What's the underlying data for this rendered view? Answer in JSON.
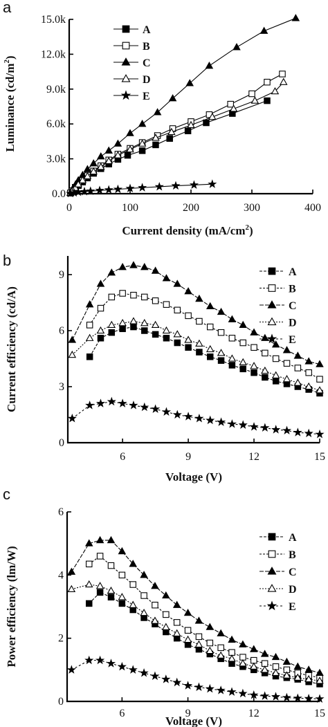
{
  "chart_data": [
    {
      "panel": "a",
      "type": "line",
      "xlabel": "Current density (mA/cm",
      "xlabel_sup": "2",
      "xlabel_end": ")",
      "ylabel": "Luminance (cd/m",
      "ylabel_sup": "2",
      "ylabel_end": ")",
      "xlim": [
        0,
        400
      ],
      "ylim": [
        0,
        15000
      ],
      "xticks": [
        0,
        100,
        200,
        300,
        400
      ],
      "xtick_labels": [
        "0",
        "100",
        "200",
        "300",
        "400"
      ],
      "yticks": [
        0,
        3000,
        6000,
        9000,
        12000,
        15000
      ],
      "ytick_labels": [
        "0.0",
        "3.0k",
        "6.0k",
        "9.0k",
        "12.0k",
        "15.0k"
      ],
      "legend_position": "top-left",
      "series": [
        {
          "name": "A",
          "marker": "square-filled",
          "x": [
            2,
            5,
            10,
            15,
            22,
            30,
            40,
            52,
            65,
            80,
            96,
            120,
            142,
            165,
            195,
            225,
            268,
            325
          ],
          "y": [
            50,
            200,
            450,
            700,
            1000,
            1350,
            1750,
            2150,
            2550,
            2950,
            3300,
            3700,
            4200,
            4750,
            5400,
            6100,
            6900,
            8000
          ]
        },
        {
          "name": "B",
          "marker": "square-open",
          "x": [
            2,
            5,
            10,
            15,
            22,
            30,
            40,
            52,
            65,
            80,
            100,
            120,
            145,
            170,
            200,
            230,
            265,
            300,
            325,
            350
          ],
          "y": [
            60,
            250,
            550,
            850,
            1200,
            1550,
            1950,
            2400,
            2900,
            3400,
            3900,
            4400,
            5000,
            5600,
            6200,
            6800,
            7700,
            8600,
            9600,
            10300
          ]
        },
        {
          "name": "C",
          "marker": "triangle-filled",
          "x": [
            2,
            5,
            10,
            15,
            22,
            30,
            40,
            52,
            65,
            80,
            100,
            120,
            145,
            170,
            198,
            230,
            275,
            320,
            372
          ],
          "y": [
            80,
            350,
            750,
            1150,
            1600,
            2100,
            2600,
            3200,
            3700,
            4300,
            5200,
            6000,
            7000,
            8200,
            9500,
            11000,
            12600,
            14000,
            15100
          ]
        },
        {
          "name": "D",
          "marker": "triangle-open",
          "x": [
            2,
            5,
            10,
            15,
            22,
            30,
            40,
            52,
            65,
            80,
            100,
            120,
            142,
            168,
            200,
            235,
            270,
            305,
            338,
            352
          ],
          "y": [
            60,
            250,
            500,
            800,
            1150,
            1500,
            1900,
            2300,
            2800,
            3300,
            3800,
            4300,
            4800,
            5300,
            5900,
            6600,
            7300,
            8000,
            8800,
            9600
          ]
        },
        {
          "name": "E",
          "marker": "star-filled",
          "x": [
            2,
            8,
            15,
            25,
            35,
            50,
            65,
            80,
            100,
            120,
            148,
            175,
            205,
            235
          ],
          "y": [
            20,
            80,
            130,
            180,
            220,
            280,
            330,
            380,
            450,
            520,
            600,
            680,
            750,
            820
          ]
        }
      ]
    },
    {
      "panel": "b",
      "type": "line",
      "xlabel": "Voltage (V)",
      "ylabel": "Current efficiency (cd/A)",
      "xlim": [
        3.5,
        15
      ],
      "ylim": [
        0,
        10
      ],
      "xticks": [
        6,
        9,
        12,
        15
      ],
      "xtick_labels": [
        "6",
        "9",
        "12",
        "15"
      ],
      "yticks": [
        0,
        3,
        6,
        9
      ],
      "ytick_labels": [
        "0",
        "3",
        "6",
        "9"
      ],
      "legend_position": "top-right",
      "series": [
        {
          "name": "A",
          "marker": "square-filled",
          "x": [
            4.5,
            5.0,
            5.5,
            6.0,
            6.5,
            7.0,
            7.5,
            8.0,
            8.5,
            9.0,
            9.5,
            10.0,
            10.5,
            11.0,
            11.5,
            12.0,
            12.5,
            13.0,
            13.5,
            14.0,
            14.5,
            15.0
          ],
          "y": [
            4.6,
            5.6,
            5.9,
            6.1,
            6.2,
            6.0,
            5.8,
            5.6,
            5.35,
            5.1,
            4.85,
            4.6,
            4.4,
            4.15,
            3.95,
            3.75,
            3.5,
            3.3,
            3.15,
            3.0,
            2.85,
            2.65
          ]
        },
        {
          "name": "B",
          "marker": "square-open",
          "x": [
            4.5,
            5.0,
            5.5,
            6.0,
            6.5,
            7.0,
            7.5,
            8.0,
            8.5,
            9.0,
            9.5,
            10.0,
            10.5,
            11.0,
            11.5,
            12.0,
            12.5,
            13.0,
            13.5,
            14.0,
            14.5,
            15.0
          ],
          "y": [
            6.3,
            7.2,
            7.8,
            8.0,
            7.9,
            7.8,
            7.6,
            7.4,
            7.1,
            6.8,
            6.5,
            6.2,
            5.9,
            5.6,
            5.35,
            5.1,
            4.8,
            4.5,
            4.25,
            4.0,
            3.75,
            3.4
          ]
        },
        {
          "name": "C",
          "marker": "triangle-filled",
          "x": [
            3.7,
            4.5,
            5.0,
            5.5,
            6.0,
            6.5,
            7.0,
            7.5,
            8.0,
            8.5,
            9.0,
            9.5,
            10.0,
            10.5,
            11.0,
            11.5,
            12.0,
            12.5,
            13.0,
            13.5,
            14.0,
            14.5,
            15.0
          ],
          "y": [
            5.5,
            7.4,
            8.5,
            9.1,
            9.4,
            9.5,
            9.4,
            9.2,
            8.8,
            8.5,
            8.1,
            7.7,
            7.3,
            7.0,
            6.6,
            6.3,
            5.9,
            5.6,
            5.25,
            4.95,
            4.65,
            4.35,
            4.2
          ]
        },
        {
          "name": "D",
          "marker": "triangle-open",
          "x": [
            3.7,
            4.5,
            5.0,
            5.5,
            6.0,
            6.5,
            7.0,
            7.5,
            8.0,
            8.5,
            9.0,
            9.5,
            10.0,
            10.5,
            11.0,
            11.5,
            12.0,
            12.5,
            13.0,
            13.5,
            14.0,
            14.5,
            15.0
          ],
          "y": [
            4.7,
            5.6,
            6.0,
            6.3,
            6.4,
            6.5,
            6.4,
            6.3,
            6.0,
            5.8,
            5.5,
            5.3,
            5.0,
            4.8,
            4.5,
            4.3,
            4.1,
            3.85,
            3.6,
            3.4,
            3.2,
            3.0,
            2.8
          ]
        },
        {
          "name": "E",
          "marker": "star-filled",
          "x": [
            3.7,
            4.5,
            5.0,
            5.5,
            6.0,
            6.5,
            7.0,
            7.5,
            8.0,
            8.5,
            9.0,
            9.5,
            10.0,
            10.5,
            11.0,
            11.5,
            12.0,
            12.5,
            13.0,
            13.5,
            14.0,
            14.5,
            15.0
          ],
          "y": [
            1.3,
            2.0,
            2.1,
            2.2,
            2.1,
            2.0,
            1.9,
            1.8,
            1.65,
            1.5,
            1.4,
            1.3,
            1.2,
            1.1,
            1.0,
            0.95,
            0.85,
            0.8,
            0.7,
            0.65,
            0.55,
            0.5,
            0.45
          ]
        }
      ]
    },
    {
      "panel": "c",
      "type": "line",
      "xlabel": "Voltage (V)",
      "ylabel": "Power efficiency (lm/W)",
      "xlim": [
        3.5,
        15
      ],
      "ylim": [
        0,
        6
      ],
      "xticks": [
        6,
        9,
        12,
        15
      ],
      "xtick_labels": [
        "6",
        "9",
        "12",
        "15"
      ],
      "yticks": [
        0,
        2,
        4,
        6
      ],
      "ytick_labels": [
        "0",
        "2",
        "4",
        "6"
      ],
      "legend_position": "right",
      "series": [
        {
          "name": "A",
          "marker": "square-filled",
          "x": [
            4.5,
            5.0,
            5.5,
            6.0,
            6.5,
            7.0,
            7.5,
            8.0,
            8.5,
            9.0,
            9.5,
            10.0,
            10.5,
            11.0,
            11.5,
            12.0,
            12.5,
            13.0,
            13.5,
            14.0,
            14.5,
            15.0
          ],
          "y": [
            3.1,
            3.45,
            3.3,
            3.1,
            2.9,
            2.65,
            2.45,
            2.2,
            2.0,
            1.8,
            1.65,
            1.5,
            1.35,
            1.2,
            1.1,
            1.0,
            0.9,
            0.8,
            0.75,
            0.7,
            0.62,
            0.55
          ]
        },
        {
          "name": "B",
          "marker": "square-open",
          "x": [
            4.5,
            5.0,
            5.5,
            6.0,
            6.5,
            7.0,
            7.5,
            8.0,
            8.5,
            9.0,
            9.5,
            10.0,
            10.5,
            11.0,
            11.5,
            12.0,
            12.5,
            13.0,
            13.5,
            14.0,
            14.5,
            15.0
          ],
          "y": [
            4.35,
            4.6,
            4.3,
            4.0,
            3.7,
            3.35,
            3.05,
            2.75,
            2.5,
            2.25,
            2.05,
            1.85,
            1.7,
            1.55,
            1.4,
            1.3,
            1.2,
            1.1,
            1.0,
            0.9,
            0.82,
            0.75
          ]
        },
        {
          "name": "C",
          "marker": "triangle-filled",
          "x": [
            3.7,
            4.5,
            5.0,
            5.5,
            6.0,
            6.5,
            7.0,
            7.5,
            8.0,
            8.5,
            9.0,
            9.5,
            10.0,
            10.5,
            11.0,
            11.5,
            12.0,
            12.5,
            13.0,
            13.5,
            14.0,
            14.5,
            15.0
          ],
          "y": [
            4.1,
            5.0,
            5.1,
            5.1,
            4.75,
            4.35,
            4.0,
            3.65,
            3.35,
            3.05,
            2.8,
            2.55,
            2.35,
            2.15,
            1.95,
            1.8,
            1.65,
            1.5,
            1.4,
            1.25,
            1.1,
            1.0,
            0.9
          ]
        },
        {
          "name": "D",
          "marker": "triangle-open",
          "x": [
            3.7,
            4.5,
            5.0,
            5.5,
            6.0,
            6.5,
            7.0,
            7.5,
            8.0,
            8.5,
            9.0,
            9.5,
            10.0,
            10.5,
            11.0,
            11.5,
            12.0,
            12.5,
            13.0,
            13.5,
            14.0,
            14.5,
            15.0
          ],
          "y": [
            3.55,
            3.7,
            3.65,
            3.5,
            3.3,
            3.05,
            2.8,
            2.55,
            2.35,
            2.15,
            1.95,
            1.8,
            1.6,
            1.45,
            1.35,
            1.2,
            1.1,
            1.0,
            0.9,
            0.82,
            0.75,
            0.7,
            0.65
          ]
        },
        {
          "name": "E",
          "marker": "star-filled",
          "x": [
            3.7,
            4.5,
            5.0,
            5.5,
            6.0,
            6.5,
            7.0,
            7.5,
            8.0,
            8.5,
            9.0,
            9.5,
            10.0,
            10.5,
            11.0,
            11.5,
            12.0,
            12.5,
            13.0,
            13.5,
            14.0,
            14.5,
            15.0
          ],
          "y": [
            1.0,
            1.3,
            1.3,
            1.2,
            1.1,
            1.0,
            0.9,
            0.8,
            0.7,
            0.6,
            0.5,
            0.45,
            0.4,
            0.35,
            0.3,
            0.25,
            0.2,
            0.17,
            0.15,
            0.12,
            0.1,
            0.09,
            0.08
          ]
        }
      ]
    }
  ]
}
